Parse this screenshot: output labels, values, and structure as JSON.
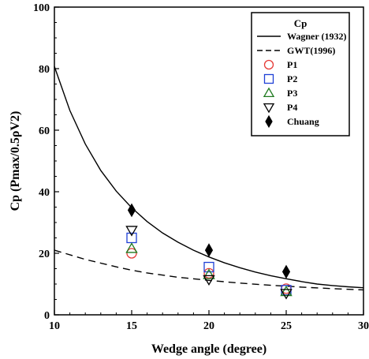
{
  "chart_data": {
    "type": "scatter",
    "xlabel": "Wedge angle (degree)",
    "ylabel": "Cp (Pmax/0.5ρV2)",
    "xlim": [
      10,
      30
    ],
    "ylim": [
      0,
      100
    ],
    "x_ticks": [
      "10",
      "15",
      "20",
      "25",
      "30"
    ],
    "y_ticks": [
      "0",
      "20",
      "40",
      "60",
      "80",
      "100"
    ],
    "grid": false,
    "legend": {
      "title": "Cp",
      "position": "top-right"
    },
    "curves": [
      {
        "name": "Wagner (1932)",
        "style": "solid",
        "x": [
          10,
          11,
          12,
          13,
          14,
          15,
          16,
          17,
          18,
          19,
          20,
          21,
          22,
          23,
          24,
          25,
          26,
          27,
          28,
          29,
          30
        ],
        "y": [
          80.7,
          66.4,
          55.5,
          46.9,
          40.2,
          34.8,
          30.3,
          26.6,
          23.6,
          21.0,
          18.8,
          16.9,
          15.3,
          13.9,
          12.7,
          11.7,
          10.8,
          10.0,
          9.5,
          9.1,
          8.8
        ]
      },
      {
        "name": "GWT(1996)",
        "style": "dashed",
        "x": [
          10,
          12,
          14,
          15,
          16,
          18,
          20,
          22,
          24,
          25,
          26,
          28,
          30
        ],
        "y": [
          21.0,
          18.0,
          15.6,
          14.5,
          13.6,
          12.2,
          11.2,
          10.3,
          9.6,
          9.3,
          9.0,
          8.5,
          8.1
        ]
      }
    ],
    "series": [
      {
        "name": "P1",
        "marker": "circle",
        "color": "#e53935",
        "x": [
          15,
          20,
          25
        ],
        "y": [
          20.0,
          13.5,
          8.5
        ]
      },
      {
        "name": "P2",
        "marker": "square",
        "color": "#1e40d6",
        "x": [
          15,
          20,
          25
        ],
        "y": [
          25.0,
          15.5,
          8.0
        ]
      },
      {
        "name": "P3",
        "marker": "triangle-up",
        "color": "#1f7a1f",
        "x": [
          15,
          20,
          25
        ],
        "y": [
          21.5,
          13.0,
          7.5
        ]
      },
      {
        "name": "P4",
        "marker": "triangle-down",
        "color": "#000000",
        "x": [
          15,
          20,
          25
        ],
        "y": [
          27.5,
          11.5,
          7.0
        ]
      },
      {
        "name": "Chuang",
        "marker": "diamond",
        "color": "#000000",
        "x": [
          15,
          20,
          25
        ],
        "y": [
          34.0,
          21.0,
          14.0
        ]
      }
    ]
  }
}
